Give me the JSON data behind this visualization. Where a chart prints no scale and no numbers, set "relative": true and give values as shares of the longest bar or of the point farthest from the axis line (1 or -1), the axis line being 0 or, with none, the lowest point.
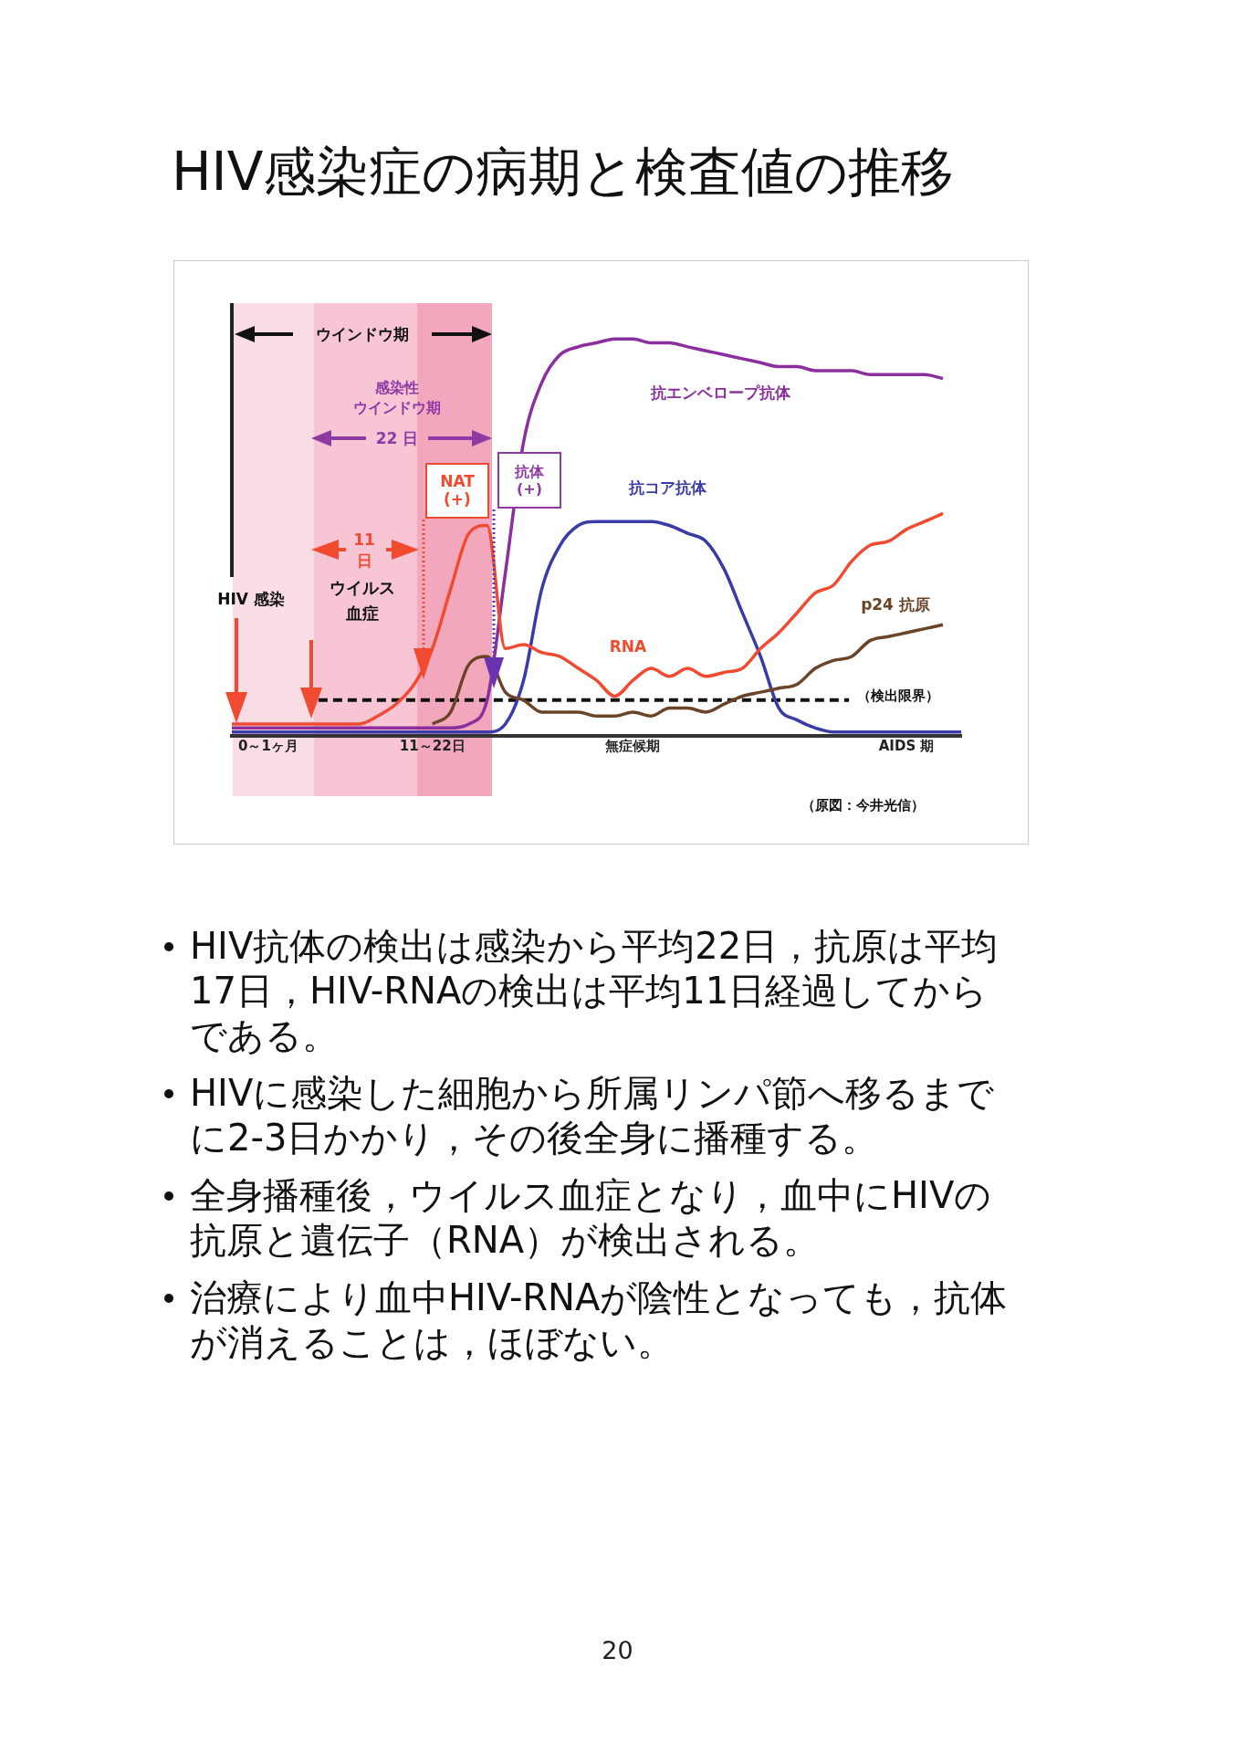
{
  "chart_data": {
    "type": "line",
    "title": "HIV感染症の病期と検査値の推移",
    "relative": true,
    "tick_labels": "x",
    "marker": "none",
    "line_style": "solid",
    "legend": false,
    "categories": [
      null,
      null,
      "0～1ヶ月",
      null,
      null,
      null,
      null,
      null,
      null,
      null,
      null,
      "11～22日",
      null,
      null,
      null,
      null,
      null,
      null,
      null,
      null,
      null,
      null,
      "無症候期",
      null,
      null,
      null,
      null,
      null,
      null,
      null,
      null,
      null,
      null,
      null,
      null,
      null,
      null,
      "AIDS 期",
      null,
      null,
      null
    ],
    "series": [
      {
        "name": "抗エンベロープ抗体",
        "color": "#8b2f9e",
        "values": [
          0.02,
          0.02,
          0.02,
          0.02,
          0.02,
          0.02,
          0.02,
          0.02,
          0.02,
          0.02,
          0.02,
          0.02,
          0.02,
          0.03,
          0.09,
          0.41,
          0.74,
          0.89,
          0.96,
          0.98,
          0.99,
          1.0,
          1.0,
          0.99,
          0.99,
          0.98,
          0.97,
          0.96,
          0.95,
          0.94,
          0.93,
          0.93,
          0.92,
          0.92,
          0.92,
          0.91,
          0.91,
          0.91,
          0.91,
          0.9,
          null
        ]
      },
      {
        "name": "抗コア抗体",
        "color": "#3b3ba8",
        "values": [
          0.01,
          0.01,
          0.01,
          0.01,
          0.01,
          0.01,
          0.01,
          0.01,
          0.01,
          0.01,
          0.01,
          0.01,
          0.01,
          0.01,
          0.01,
          0.03,
          0.14,
          0.37,
          0.48,
          0.53,
          0.54,
          0.54,
          0.54,
          0.54,
          0.53,
          0.51,
          0.49,
          0.42,
          0.31,
          0.2,
          0.07,
          0.04,
          0.02,
          0.01,
          0.01,
          0.01,
          0.01,
          0.01,
          0.01,
          0.01,
          0.01
        ]
      },
      {
        "name": "RNA",
        "color": "#f04b30",
        "values": [
          0.03,
          0.03,
          0.03,
          0.03,
          0.03,
          0.03,
          0.03,
          0.03,
          0.05,
          0.08,
          0.13,
          0.22,
          0.37,
          0.51,
          0.53,
          0.22,
          0.23,
          0.21,
          0.2,
          0.17,
          0.14,
          0.1,
          0.14,
          0.17,
          0.15,
          0.17,
          0.15,
          0.16,
          0.17,
          0.22,
          0.26,
          0.31,
          0.36,
          0.38,
          0.44,
          0.48,
          0.49,
          0.52,
          0.54,
          0.56,
          null
        ]
      },
      {
        "name": "p24 抗原",
        "color": "#6b4428",
        "values": [
          null,
          null,
          null,
          null,
          null,
          null,
          null,
          null,
          null,
          null,
          null,
          0.03,
          0.06,
          0.18,
          0.2,
          0.11,
          0.09,
          0.06,
          0.06,
          0.06,
          0.05,
          0.05,
          0.06,
          0.05,
          0.07,
          0.07,
          0.06,
          0.08,
          0.1,
          0.11,
          0.12,
          0.13,
          0.17,
          0.19,
          0.2,
          0.24,
          0.25,
          0.26,
          0.27,
          0.28,
          null
        ]
      }
    ],
    "ref_lines": [
      {
        "axis": "y",
        "value": 0.09,
        "label": "（検出限界）",
        "color": "#111111",
        "line_style": "dashed"
      }
    ],
    "annotations": [
      "ウインドウ期",
      "感染性",
      "ウインドウ期",
      "22 日",
      "NAT\n(+)",
      "抗体\n(+)",
      "11",
      "日",
      "ウイルス",
      "血症",
      "HIV 感染",
      "（原図：今井光信）",
      "HIV抗体の検出は感染から平均22日，抗原は平均17日，HIV-RNAの検出は平均11日経過してからである。",
      "HIVに感染した細胞から所属リンパ節へ移るまでに2-3日かかり，その後全身に播種する。",
      "全身播種後，ウイルス血症となり，血中にHIVの抗原と遺伝子（RNA）が検出される。",
      "治療により血中HIV-RNAが陰性となっても，抗体が消えることは，ほぼない。",
      "20"
    ]
  }
}
